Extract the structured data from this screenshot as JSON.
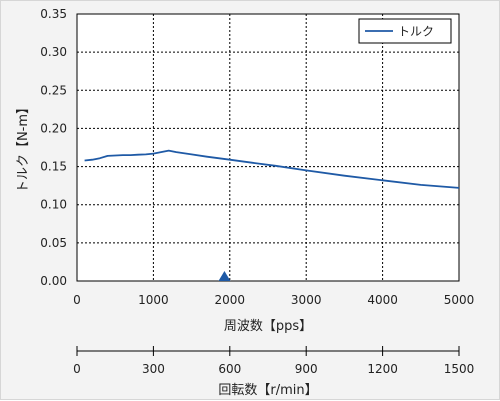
{
  "chart_data": [
    {
      "type": "line",
      "title": "",
      "xlabel": "周波数【pps】",
      "ylabel": "トルク【N-m】",
      "xlim": [
        0,
        5000
      ],
      "ylim": [
        0,
        0.35
      ],
      "x_ticks": [
        "0",
        "1000",
        "2000",
        "3000",
        "4000",
        "5000"
      ],
      "x_tick_values": [
        0,
        1000,
        2000,
        3000,
        4000,
        5000
      ],
      "y_ticks": [
        "0.00",
        "0.05",
        "0.10",
        "0.15",
        "0.20",
        "0.25",
        "0.30",
        "0.35"
      ],
      "y_tick_values": [
        0,
        0.05,
        0.1,
        0.15,
        0.2,
        0.25,
        0.3,
        0.35
      ],
      "grid": true,
      "legend": "top-right",
      "marker_x": 1930,
      "series": [
        {
          "name": "トルク",
          "color": "#1f5aa6",
          "x": [
            100,
            200,
            300,
            400,
            500,
            600,
            700,
            800,
            900,
            1000,
            1100,
            1200,
            1300,
            1500,
            1700,
            2000,
            2300,
            2600,
            3000,
            3500,
            4000,
            4500,
            5000
          ],
          "y": [
            0.158,
            0.159,
            0.161,
            0.164,
            0.1645,
            0.165,
            0.165,
            0.1655,
            0.166,
            0.167,
            0.169,
            0.171,
            0.169,
            0.166,
            0.163,
            0.159,
            0.155,
            0.151,
            0.145,
            0.138,
            0.132,
            0.126,
            0.122
          ]
        }
      ]
    },
    {
      "type": "axis",
      "xlabel": "回転数【r/min】",
      "xlim": [
        0,
        1500
      ],
      "x_ticks": [
        "0",
        "300",
        "600",
        "900",
        "1200",
        "1500"
      ],
      "x_tick_values": [
        0,
        300,
        600,
        900,
        1200,
        1500
      ]
    }
  ]
}
